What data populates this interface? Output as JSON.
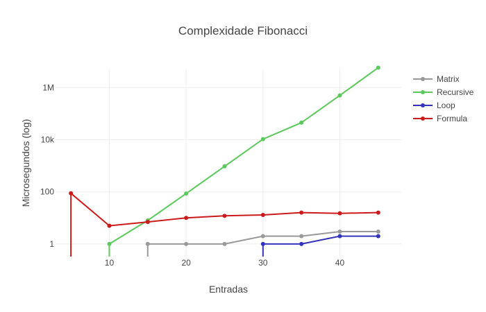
{
  "chart_data": {
    "type": "line",
    "title": "Complexidade Fibonacci",
    "xlabel": "Entradas",
    "ylabel": "Microsegundos (log)",
    "x_scale": "linear",
    "y_scale": "log",
    "xlim": [
      3,
      48
    ],
    "ylim": [
      0.33,
      5000000
    ],
    "x_ticks": [
      10,
      20,
      30,
      40
    ],
    "x_tick_labels": [
      "10",
      "20",
      "30",
      "40"
    ],
    "y_ticks": [
      1,
      100,
      10000,
      1000000
    ],
    "y_tick_labels": [
      "1",
      "100",
      "10k",
      "1M"
    ],
    "grid": true,
    "legend_position": "top-right",
    "series": [
      {
        "name": "Matrix",
        "color": "#999999",
        "x": [
          15,
          20,
          25,
          30,
          35,
          40,
          45
        ],
        "y": [
          1,
          1,
          1,
          2,
          2,
          3,
          3
        ]
      },
      {
        "name": "Recursive",
        "color": "#5ac85a",
        "x": [
          10,
          15,
          20,
          25,
          30,
          35,
          40,
          45
        ],
        "y": [
          1,
          8,
          86,
          950,
          10500,
          45000,
          500000,
          5800000
        ]
      },
      {
        "name": "Loop",
        "color": "#3333bb",
        "x": [
          30,
          35,
          40,
          45
        ],
        "y": [
          1,
          1,
          2,
          2
        ]
      },
      {
        "name": "Formula",
        "color": "#cc1a1a",
        "x": [
          5,
          10,
          15,
          20,
          25,
          30,
          35,
          40,
          45
        ],
        "y": [
          88,
          5,
          7,
          10,
          12,
          13,
          16,
          15,
          16
        ]
      }
    ]
  }
}
